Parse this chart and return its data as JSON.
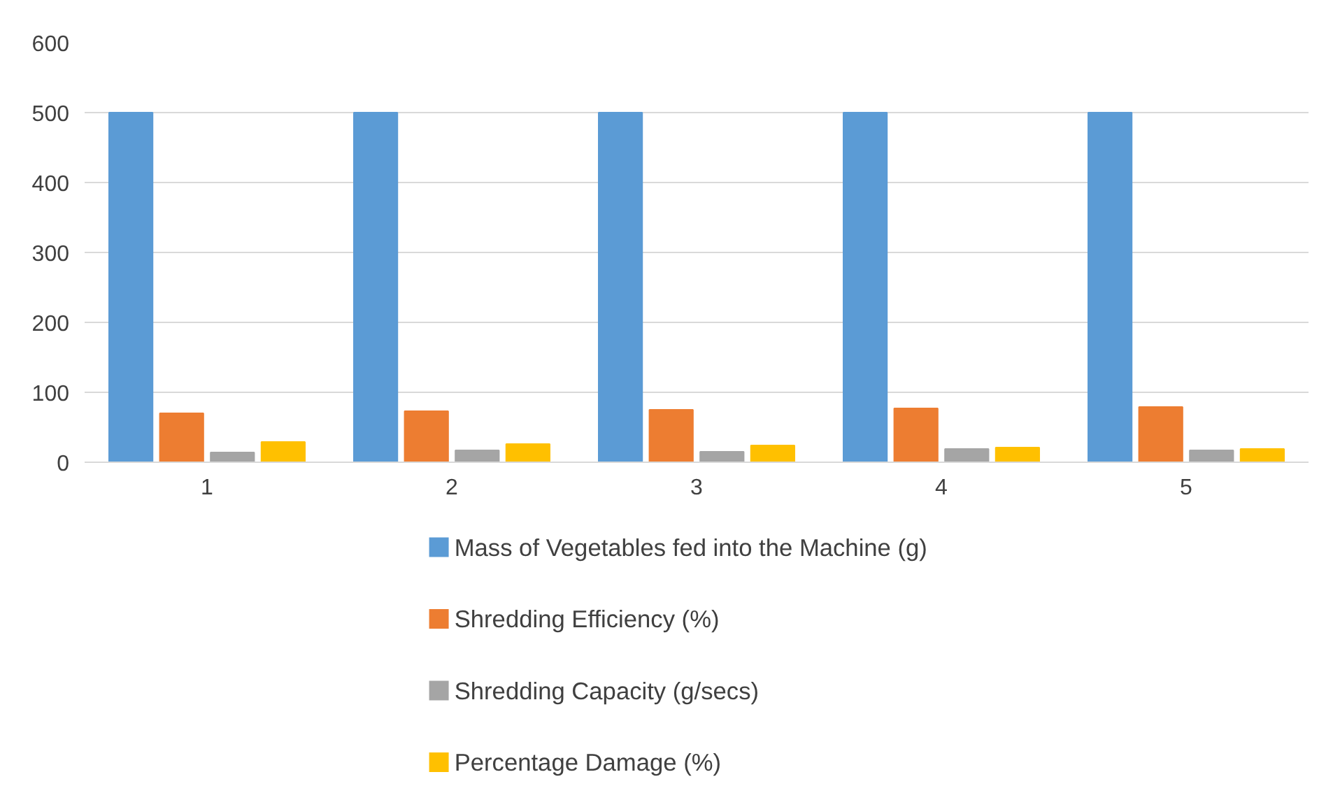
{
  "chart_data": {
    "type": "bar",
    "categories": [
      "1",
      "2",
      "3",
      "4",
      "5"
    ],
    "series": [
      {
        "name": "Mass of Vegetables fed into the Machine (g)",
        "color": "#5b9bd5",
        "values": [
          500,
          500,
          500,
          500,
          500
        ]
      },
      {
        "name": "Shredding Efficiency (%)",
        "color": "#ed7d31",
        "values": [
          70,
          73,
          75,
          77,
          79
        ]
      },
      {
        "name": "Shredding Capacity (g/secs)",
        "color": "#a5a5a5",
        "values": [
          14,
          17,
          15,
          19,
          17
        ]
      },
      {
        "name": "Percentage Damage (%)",
        "color": "#ffc000",
        "values": [
          29,
          26,
          24,
          21,
          19
        ]
      }
    ],
    "ylim": [
      0,
      600
    ],
    "yticks": [
      0,
      100,
      200,
      300,
      400,
      500,
      600
    ],
    "grid": "y",
    "legend": "bottom"
  }
}
